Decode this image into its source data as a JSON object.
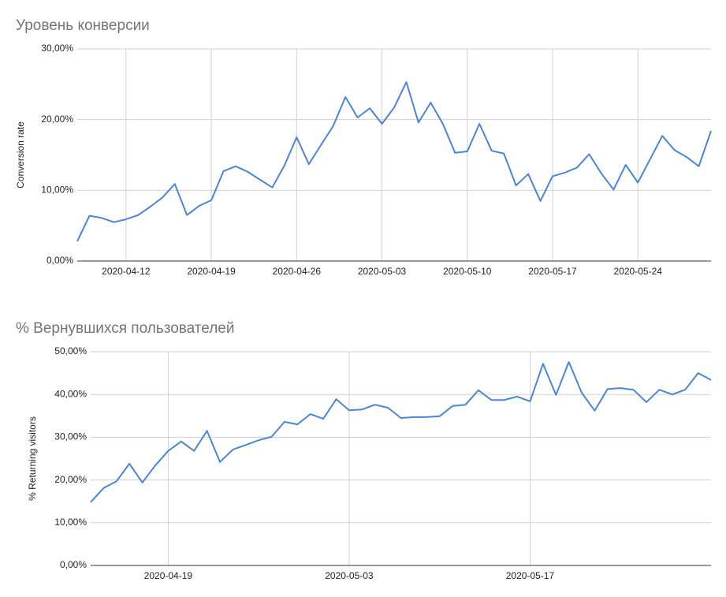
{
  "chart_data": [
    {
      "type": "line",
      "title": "Уровень конверсии",
      "y_label": "Conversion rate",
      "x": [
        "2020-04-08",
        "2020-04-09",
        "2020-04-10",
        "2020-04-11",
        "2020-04-12",
        "2020-04-13",
        "2020-04-14",
        "2020-04-15",
        "2020-04-16",
        "2020-04-17",
        "2020-04-18",
        "2020-04-19",
        "2020-04-20",
        "2020-04-21",
        "2020-04-22",
        "2020-04-23",
        "2020-04-24",
        "2020-04-25",
        "2020-04-26",
        "2020-04-27",
        "2020-04-28",
        "2020-04-29",
        "2020-04-30",
        "2020-05-01",
        "2020-05-02",
        "2020-05-03",
        "2020-05-04",
        "2020-05-05",
        "2020-05-06",
        "2020-05-07",
        "2020-05-08",
        "2020-05-09",
        "2020-05-10",
        "2020-05-11",
        "2020-05-12",
        "2020-05-13",
        "2020-05-14",
        "2020-05-15",
        "2020-05-16",
        "2020-05-17",
        "2020-05-18",
        "2020-05-19",
        "2020-05-20",
        "2020-05-21",
        "2020-05-22",
        "2020-05-23",
        "2020-05-24",
        "2020-05-25",
        "2020-05-26",
        "2020-05-27",
        "2020-05-28",
        "2020-05-29",
        "2020-05-30"
      ],
      "series": [
        {
          "name": "Conversion rate",
          "color": "#4a86d8",
          "values": [
            2.8,
            6.4,
            6.1,
            5.5,
            5.9,
            6.5,
            7.7,
            9.0,
            10.9,
            6.5,
            7.8,
            8.6,
            12.7,
            13.4,
            12.6,
            11.5,
            10.4,
            13.5,
            17.5,
            13.7,
            16.4,
            19.1,
            23.2,
            20.3,
            21.6,
            19.4,
            21.7,
            25.3,
            19.6,
            22.4,
            19.4,
            15.3,
            15.5,
            19.4,
            15.6,
            15.2,
            10.7,
            12.3,
            8.5,
            12.0,
            12.5,
            13.2,
            15.1,
            12.4,
            10.1,
            13.6,
            11.1,
            14.4,
            17.7,
            15.7,
            14.7,
            13.4,
            18.4
          ]
        }
      ],
      "xlim": [
        "2020-04-08",
        "2020-05-30"
      ],
      "xticks": [
        "2020-04-12",
        "2020-04-19",
        "2020-04-26",
        "2020-05-03",
        "2020-05-10",
        "2020-05-17",
        "2020-05-24"
      ],
      "ylim": [
        0,
        30
      ],
      "yticks": [
        {
          "value": 0,
          "label": "0,00%"
        },
        {
          "value": 10,
          "label": "10,00%"
        },
        {
          "value": 20,
          "label": "20,00%"
        },
        {
          "value": 30,
          "label": "30,00%"
        }
      ],
      "grid": true
    },
    {
      "type": "line",
      "title": "% Вернувшихся пользователей",
      "y_label": "% Returning visitors",
      "x": [
        "2020-04-13",
        "2020-04-14",
        "2020-04-15",
        "2020-04-16",
        "2020-04-17",
        "2020-04-18",
        "2020-04-19",
        "2020-04-20",
        "2020-04-21",
        "2020-04-22",
        "2020-04-23",
        "2020-04-24",
        "2020-04-25",
        "2020-04-26",
        "2020-04-27",
        "2020-04-28",
        "2020-04-29",
        "2020-04-30",
        "2020-05-01",
        "2020-05-02",
        "2020-05-03",
        "2020-05-04",
        "2020-05-05",
        "2020-05-06",
        "2020-05-07",
        "2020-05-08",
        "2020-05-09",
        "2020-05-10",
        "2020-05-11",
        "2020-05-12",
        "2020-05-13",
        "2020-05-14",
        "2020-05-15",
        "2020-05-16",
        "2020-05-17",
        "2020-05-18",
        "2020-05-19",
        "2020-05-20",
        "2020-05-21",
        "2020-05-22",
        "2020-05-23",
        "2020-05-24",
        "2020-05-25",
        "2020-05-26",
        "2020-05-27",
        "2020-05-28",
        "2020-05-29",
        "2020-05-30",
        "2020-05-31"
      ],
      "series": [
        {
          "name": "% Returning visitors",
          "color": "#4a86d8",
          "values": [
            14.8,
            18.1,
            19.7,
            23.8,
            19.4,
            23.4,
            26.8,
            29.0,
            26.8,
            31.5,
            24.2,
            27.1,
            28.2,
            29.3,
            30.1,
            33.6,
            33.0,
            35.4,
            34.3,
            38.9,
            36.3,
            36.5,
            37.6,
            36.9,
            34.5,
            34.7,
            34.7,
            34.9,
            37.3,
            37.6,
            41.0,
            38.7,
            38.7,
            39.5,
            38.4,
            47.2,
            39.9,
            47.6,
            40.4,
            36.2,
            41.3,
            41.5,
            41.1,
            38.2,
            41.1,
            40.0,
            41.1,
            45.0,
            43.4
          ]
        }
      ],
      "xlim": [
        "2020-04-13",
        "2020-05-31"
      ],
      "xticks": [
        "2020-04-19",
        "2020-05-03",
        "2020-05-17"
      ],
      "ylim": [
        0,
        50
      ],
      "yticks": [
        {
          "value": 0,
          "label": "0,00%"
        },
        {
          "value": 10,
          "label": "10,00%"
        },
        {
          "value": 20,
          "label": "20,00%"
        },
        {
          "value": 30,
          "label": "30,00%"
        },
        {
          "value": 40,
          "label": "40,00%"
        },
        {
          "value": 50,
          "label": "50,00%"
        }
      ],
      "grid": true
    }
  ]
}
